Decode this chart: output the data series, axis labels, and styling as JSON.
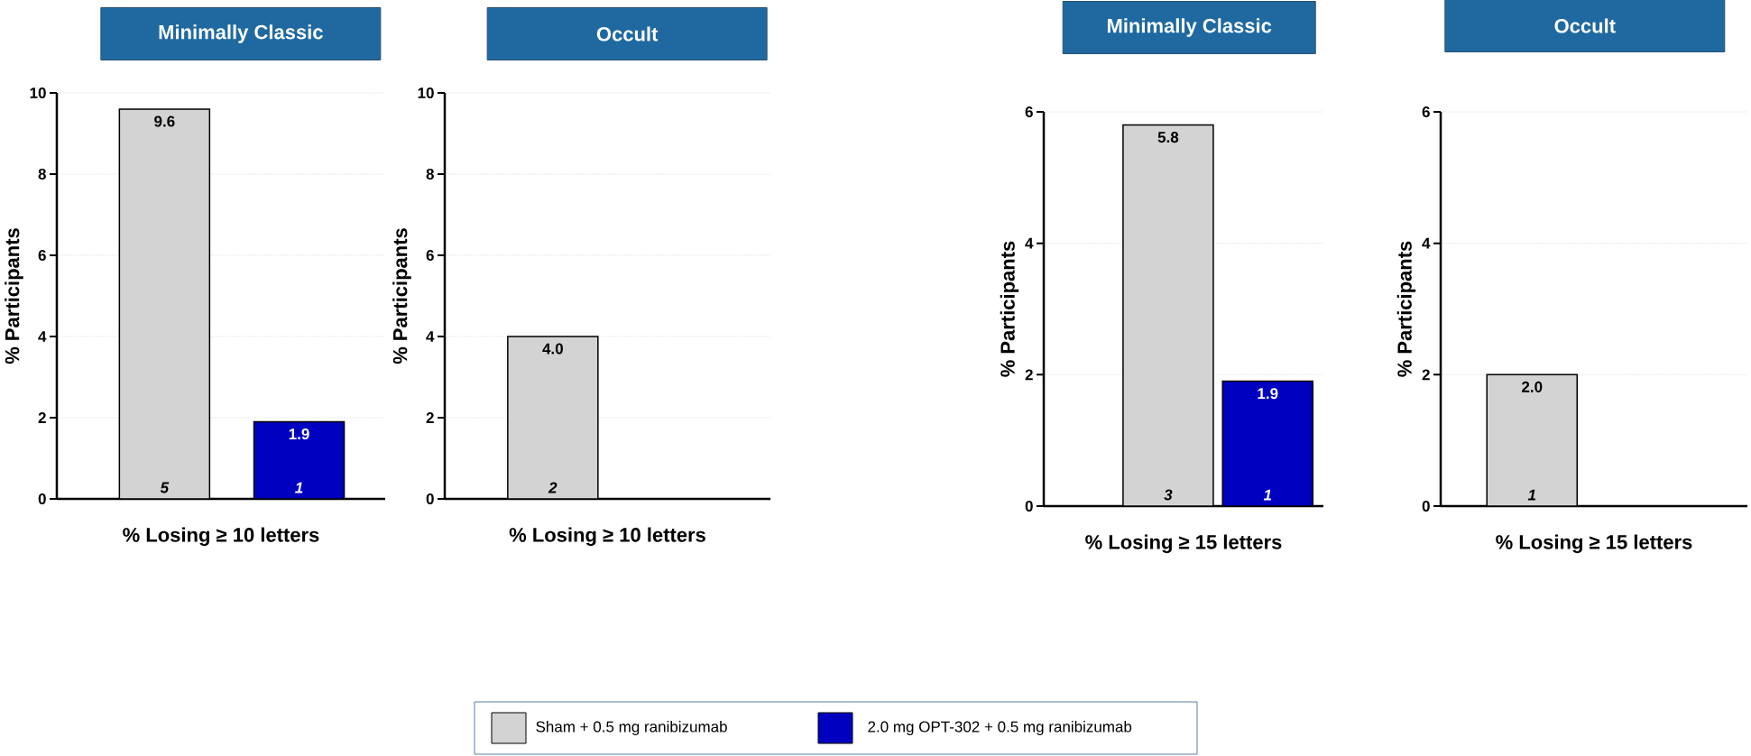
{
  "chart_data": [
    {
      "type": "bar",
      "title": "Minimally Classic",
      "ylabel": "% Participants",
      "xlabel": "% Losing ≥ 10 letters",
      "categories": [
        null,
        null
      ],
      "series": [
        {
          "name": "Sham + 0.5 mg ranibizumab",
          "color": "#d3d3d3",
          "values": [
            9.6,
            null
          ],
          "value_labels": [
            "9.6",
            null
          ]
        },
        {
          "name": "2.0 mg OPT-302 + 0.5 mg ranibizumab",
          "color": "#0000c0",
          "values": [
            null,
            1.9
          ],
          "value_labels": [
            null,
            "1.9"
          ]
        }
      ],
      "ylim": [
        0,
        10
      ],
      "yticks": [
        0,
        2,
        4,
        6,
        8,
        10
      ],
      "grid": "y",
      "legend": "bottom",
      "annotations": [
        "5",
        "1"
      ]
    },
    {
      "type": "bar",
      "title": "Occult",
      "ylabel": "% Participants",
      "xlabel": "% Losing ≥ 10 letters",
      "categories": [
        null,
        null
      ],
      "series": [
        {
          "color": "#d3d3d3",
          "values": [
            4.0,
            null
          ],
          "value_labels": [
            "4.0",
            null
          ]
        },
        {
          "color": "#0000c0",
          "values": [
            null,
            null
          ]
        }
      ],
      "ylim": [
        0,
        10
      ],
      "yticks": [
        0,
        2,
        4,
        6,
        8,
        10
      ],
      "grid": "y",
      "annotations": [
        "2"
      ]
    },
    {
      "type": "bar",
      "title": "Minimally Classic",
      "ylabel": "% Participants",
      "xlabel": "% Losing ≥ 15 letters",
      "categories": [
        null,
        null
      ],
      "series": [
        {
          "color": "#d3d3d3",
          "values": [
            5.8,
            null
          ],
          "value_labels": [
            "5.8",
            null
          ]
        },
        {
          "color": "#0000c0",
          "values": [
            null,
            1.9
          ],
          "value_labels": [
            null,
            "1.9"
          ]
        }
      ],
      "ylim": [
        0,
        6
      ],
      "yticks": [
        0,
        2,
        4,
        6
      ],
      "grid": "y",
      "annotations": [
        "3",
        "1"
      ]
    },
    {
      "type": "bar",
      "title": "Occult",
      "ylabel": "% Participants",
      "xlabel": "% Losing ≥ 15 letters",
      "categories": [
        null,
        null
      ],
      "series": [
        {
          "color": "#d3d3d3",
          "values": [
            2.0,
            null
          ],
          "value_labels": [
            "2.0",
            null
          ]
        },
        {
          "color": "#0000c0",
          "values": [
            null,
            null
          ]
        }
      ],
      "ylim": [
        0,
        6
      ],
      "yticks": [
        0,
        2,
        4,
        6
      ],
      "grid": "y",
      "annotations": [
        "1"
      ]
    }
  ]
}
